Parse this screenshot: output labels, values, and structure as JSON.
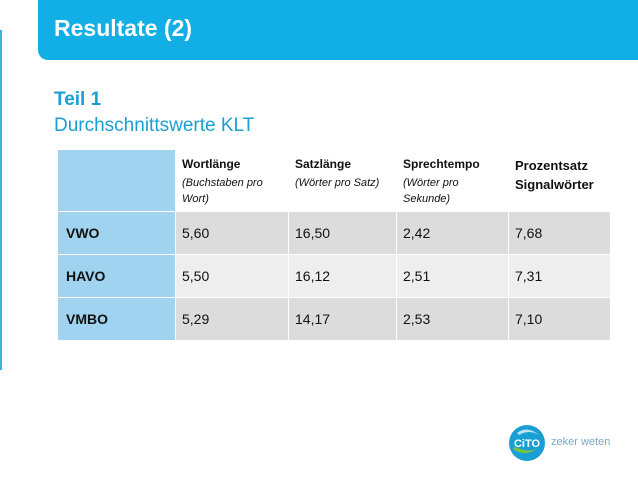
{
  "slide": {
    "title": "Resultate (2)",
    "heading": "Teil 1",
    "subtitle": "Durchschnittswerte KLT"
  },
  "table": {
    "columns": [
      {
        "title": "Wortlänge",
        "sub": "(Buchstaben pro Wort)"
      },
      {
        "title": "Satzlänge",
        "sub": "(Wörter pro Satz)"
      },
      {
        "title": "Sprechtempo",
        "sub": "(Wörter pro Sekunde)"
      },
      {
        "title": "Prozentsatz Signalwörter",
        "sub": ""
      }
    ],
    "rows": [
      {
        "label": "VWO",
        "values": [
          "5,60",
          "16,50",
          "2,42",
          "7,68"
        ]
      },
      {
        "label": "HAVO",
        "values": [
          "5,50",
          "16,12",
          "2,51",
          "7,31"
        ]
      },
      {
        "label": "VMBO",
        "values": [
          "5,29",
          "14,17",
          "2,53",
          "7,10"
        ]
      }
    ]
  },
  "logo": {
    "mark": "CiTO",
    "slogan": "zeker weten"
  },
  "colors": {
    "title_bar": "#12aee6",
    "accent_text": "#1a9fd4",
    "row_label_bg": "#9fd3ef",
    "cell_dark": "#dcdcdc",
    "cell_light": "#eeeeee"
  }
}
